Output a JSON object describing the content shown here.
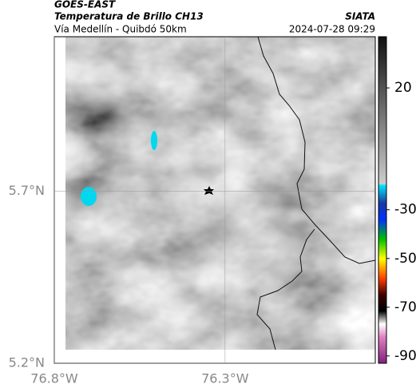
{
  "header": {
    "source": "GOES-EAST",
    "product": "Temperatura de Brillo CH13",
    "region": "Vía Medellín - Quibdó 50km",
    "org": "SIATA",
    "datetime": "2024-07-28 09:29"
  },
  "map": {
    "xlim": [
      -76.8,
      -75.86
    ],
    "ylim": [
      5.2,
      6.15
    ],
    "xticks": [
      {
        "value": -76.8,
        "label": "76.8°W"
      },
      {
        "value": -76.3,
        "label": "76.3°W"
      }
    ],
    "yticks": [
      {
        "value": 5.7,
        "label": "5.7°N"
      },
      {
        "value": 5.2,
        "label": "5.2°N"
      }
    ]
  },
  "colorbar": {
    "lim": [
      -93,
      41
    ],
    "ticks": [
      20,
      -30,
      -50,
      -70,
      -90
    ]
  }
}
